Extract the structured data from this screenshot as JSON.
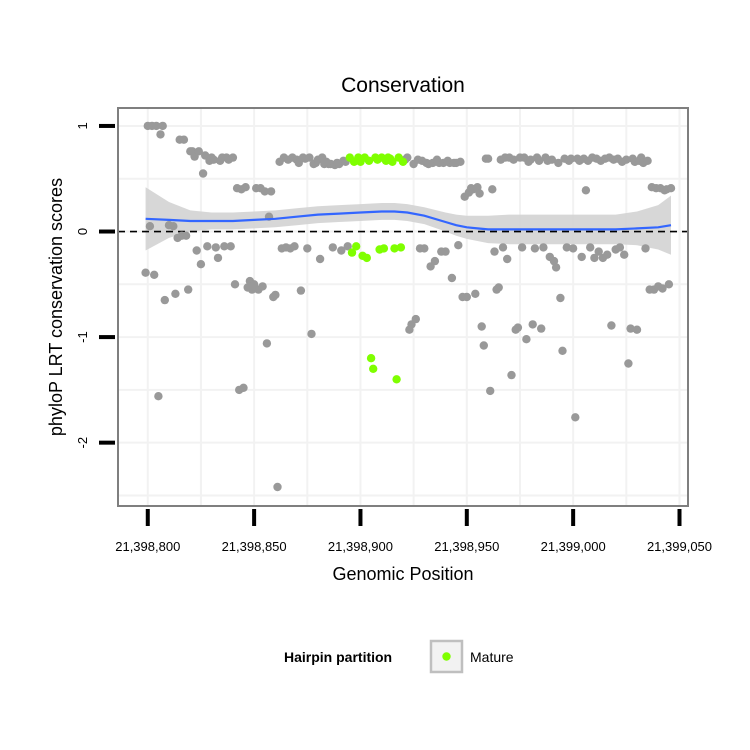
{
  "chart_data": {
    "type": "scatter",
    "title": "Conservation",
    "xlabel": "Genomic Position",
    "ylabel": "phyloP LRT conservation scores",
    "xlim": [
      21398786,
      21399054
    ],
    "ylim": [
      -2.6,
      1.17
    ],
    "x_ticks": [
      21398800,
      21398850,
      21398900,
      21398950,
      21399000,
      21399050
    ],
    "x_tick_labels": [
      "21,398,800",
      "21,398,850",
      "21,398,900",
      "21,398,950",
      "21,399,000",
      "21,399,050"
    ],
    "y_ticks": [
      1,
      0,
      -1,
      -2
    ],
    "y_tick_labels": [
      "1",
      "0",
      "-1",
      "-2"
    ],
    "grid": true,
    "reference_line": {
      "y": 0,
      "style": "dashed"
    },
    "legend": {
      "title": "Hairpin partition",
      "position": "bottom",
      "entries": [
        {
          "label": "Mature",
          "color": "#7fff00"
        }
      ]
    },
    "colors": {
      "other": "#999999",
      "mature": "#7fff00",
      "smooth": "#3366ff",
      "band": "#d3d3d3"
    },
    "series": [
      {
        "name": "",
        "color": "#999999",
        "points": [
          [
            21398799,
            -0.39
          ],
          [
            21398800,
            1.0
          ],
          [
            21398801,
            0.05
          ],
          [
            21398802,
            1.0
          ],
          [
            21398803,
            -0.41
          ],
          [
            21398804,
            1.0
          ],
          [
            21398805,
            -1.56
          ],
          [
            21398806,
            0.92
          ],
          [
            21398807,
            1.0
          ],
          [
            21398808,
            -0.65
          ],
          [
            21398810,
            0.06
          ],
          [
            21398812,
            0.05
          ],
          [
            21398813,
            -0.59
          ],
          [
            21398814,
            -0.06
          ],
          [
            21398815,
            0.87
          ],
          [
            21398816,
            -0.04
          ],
          [
            21398817,
            0.87
          ],
          [
            21398818,
            -0.04
          ],
          [
            21398819,
            -0.55
          ],
          [
            21398820,
            0.76
          ],
          [
            21398821,
            0.76
          ],
          [
            21398822,
            0.71
          ],
          [
            21398823,
            -0.18
          ],
          [
            21398824,
            0.76
          ],
          [
            21398825,
            -0.31
          ],
          [
            21398826,
            0.55
          ],
          [
            21398827,
            0.72
          ],
          [
            21398828,
            -0.14
          ],
          [
            21398829,
            0.67
          ],
          [
            21398830,
            0.7
          ],
          [
            21398831,
            0.68
          ],
          [
            21398832,
            -0.15
          ],
          [
            21398833,
            -0.25
          ],
          [
            21398834,
            0.67
          ],
          [
            21398835,
            0.7
          ],
          [
            21398836,
            -0.14
          ],
          [
            21398837,
            0.7
          ],
          [
            21398838,
            0.68
          ],
          [
            21398839,
            -0.14
          ],
          [
            21398840,
            0.7
          ],
          [
            21398841,
            -0.5
          ],
          [
            21398842,
            0.41
          ],
          [
            21398843,
            -1.5
          ],
          [
            21398844,
            0.4
          ],
          [
            21398845,
            -1.48
          ],
          [
            21398846,
            0.42
          ],
          [
            21398847,
            -0.53
          ],
          [
            21398848,
            -0.47
          ],
          [
            21398849,
            -0.55
          ],
          [
            21398850,
            -0.5
          ],
          [
            21398851,
            0.41
          ],
          [
            21398852,
            -0.55
          ],
          [
            21398853,
            0.41
          ],
          [
            21398854,
            -0.52
          ],
          [
            21398855,
            0.38
          ],
          [
            21398856,
            -1.06
          ],
          [
            21398857,
            0.14
          ],
          [
            21398858,
            0.38
          ],
          [
            21398859,
            -0.62
          ],
          [
            21398860,
            -0.6
          ],
          [
            21398861,
            -2.42
          ],
          [
            21398862,
            0.66
          ],
          [
            21398863,
            -0.16
          ],
          [
            21398864,
            0.7
          ],
          [
            21398865,
            -0.15
          ],
          [
            21398866,
            0.68
          ],
          [
            21398867,
            -0.16
          ],
          [
            21398868,
            0.7
          ],
          [
            21398869,
            -0.14
          ],
          [
            21398870,
            0.68
          ],
          [
            21398871,
            0.65
          ],
          [
            21398872,
            -0.56
          ],
          [
            21398873,
            0.7
          ],
          [
            21398874,
            0.69
          ],
          [
            21398875,
            -0.16
          ],
          [
            21398876,
            0.7
          ],
          [
            21398877,
            -0.97
          ],
          [
            21398878,
            0.64
          ],
          [
            21398879,
            0.65
          ],
          [
            21398880,
            0.68
          ],
          [
            21398881,
            -0.26
          ],
          [
            21398882,
            0.7
          ],
          [
            21398883,
            0.64
          ],
          [
            21398884,
            0.66
          ],
          [
            21398885,
            0.64
          ],
          [
            21398886,
            0.64
          ],
          [
            21398887,
            -0.15
          ],
          [
            21398888,
            0.63
          ],
          [
            21398889,
            0.65
          ],
          [
            21398890,
            0.64
          ],
          [
            21398891,
            -0.18
          ],
          [
            21398892,
            0.67
          ],
          [
            21398893,
            0.66
          ],
          [
            21398894,
            -0.14
          ],
          [
            21398921,
            0.68
          ],
          [
            21398922,
            0.7
          ],
          [
            21398923,
            -0.93
          ],
          [
            21398924,
            -0.88
          ],
          [
            21398925,
            0.64
          ],
          [
            21398926,
            -0.83
          ],
          [
            21398927,
            0.68
          ],
          [
            21398928,
            -0.16
          ],
          [
            21398929,
            0.67
          ],
          [
            21398930,
            -0.16
          ],
          [
            21398931,
            0.65
          ],
          [
            21398932,
            0.64
          ],
          [
            21398933,
            -0.33
          ],
          [
            21398934,
            0.65
          ],
          [
            21398935,
            -0.28
          ],
          [
            21398936,
            0.68
          ],
          [
            21398937,
            0.65
          ],
          [
            21398938,
            -0.19
          ],
          [
            21398939,
            0.65
          ],
          [
            21398940,
            -0.19
          ],
          [
            21398941,
            0.67
          ],
          [
            21398942,
            0.65
          ],
          [
            21398943,
            -0.44
          ],
          [
            21398944,
            0.65
          ],
          [
            21398945,
            0.65
          ],
          [
            21398946,
            -0.13
          ],
          [
            21398947,
            0.66
          ],
          [
            21398948,
            -0.62
          ],
          [
            21398949,
            0.33
          ],
          [
            21398950,
            -0.62
          ],
          [
            21398951,
            0.37
          ],
          [
            21398952,
            0.41
          ],
          [
            21398953,
            0.4
          ],
          [
            21398954,
            -0.59
          ],
          [
            21398955,
            0.42
          ],
          [
            21398956,
            0.36
          ],
          [
            21398957,
            -0.9
          ],
          [
            21398958,
            -1.08
          ],
          [
            21398959,
            0.69
          ],
          [
            21398960,
            0.69
          ],
          [
            21398961,
            -1.51
          ],
          [
            21398962,
            0.4
          ],
          [
            21398963,
            -0.19
          ],
          [
            21398964,
            -0.55
          ],
          [
            21398965,
            -0.53
          ],
          [
            21398966,
            0.68
          ],
          [
            21398967,
            -0.15
          ],
          [
            21398968,
            0.7
          ],
          [
            21398969,
            -0.26
          ],
          [
            21398970,
            0.7
          ],
          [
            21398971,
            -1.36
          ],
          [
            21398972,
            0.68
          ],
          [
            21398973,
            -0.93
          ],
          [
            21398974,
            -0.91
          ],
          [
            21398975,
            0.7
          ],
          [
            21398976,
            -0.15
          ],
          [
            21398977,
            0.7
          ],
          [
            21398978,
            -1.02
          ],
          [
            21398979,
            0.66
          ],
          [
            21398980,
            0.68
          ],
          [
            21398981,
            -0.88
          ],
          [
            21398982,
            -0.16
          ],
          [
            21398983,
            0.7
          ],
          [
            21398984,
            0.67
          ],
          [
            21398985,
            -0.92
          ],
          [
            21398986,
            -0.15
          ],
          [
            21398987,
            0.7
          ],
          [
            21398988,
            0.67
          ],
          [
            21398989,
            -0.24
          ],
          [
            21398990,
            0.68
          ],
          [
            21398991,
            -0.28
          ],
          [
            21398992,
            -0.34
          ],
          [
            21398993,
            0.65
          ],
          [
            21398994,
            -0.63
          ],
          [
            21398995,
            -1.13
          ],
          [
            21398996,
            0.69
          ],
          [
            21398997,
            -0.15
          ],
          [
            21398998,
            0.67
          ],
          [
            21398999,
            0.69
          ],
          [
            21399000,
            -0.16
          ],
          [
            21399001,
            -1.76
          ],
          [
            21399002,
            0.69
          ],
          [
            21399003,
            0.67
          ],
          [
            21399004,
            -0.24
          ],
          [
            21399005,
            0.69
          ],
          [
            21399006,
            0.39
          ],
          [
            21399007,
            0.67
          ],
          [
            21399008,
            -0.15
          ],
          [
            21399009,
            0.7
          ],
          [
            21399010,
            -0.25
          ],
          [
            21399011,
            0.69
          ],
          [
            21399012,
            -0.19
          ],
          [
            21399013,
            0.67
          ],
          [
            21399014,
            -0.25
          ],
          [
            21399015,
            0.69
          ],
          [
            21399016,
            -0.22
          ],
          [
            21399017,
            0.7
          ],
          [
            21399018,
            -0.89
          ],
          [
            21399019,
            0.68
          ],
          [
            21399020,
            -0.17
          ],
          [
            21399021,
            0.69
          ],
          [
            21399022,
            -0.15
          ],
          [
            21399023,
            0.66
          ],
          [
            21399024,
            -0.22
          ],
          [
            21399025,
            0.68
          ],
          [
            21399026,
            -1.25
          ],
          [
            21399027,
            -0.92
          ],
          [
            21399028,
            0.69
          ],
          [
            21399029,
            0.66
          ],
          [
            21399030,
            -0.93
          ],
          [
            21399031,
            0.67
          ],
          [
            21399032,
            0.7
          ],
          [
            21399033,
            0.65
          ],
          [
            21399034,
            -0.16
          ],
          [
            21399035,
            0.67
          ],
          [
            21399036,
            -0.55
          ],
          [
            21399037,
            0.42
          ],
          [
            21399038,
            -0.55
          ],
          [
            21399039,
            0.41
          ],
          [
            21399040,
            -0.52
          ],
          [
            21399041,
            0.41
          ],
          [
            21399042,
            -0.54
          ],
          [
            21399043,
            0.39
          ],
          [
            21399044,
            0.4
          ],
          [
            21399045,
            -0.5
          ],
          [
            21399046,
            0.41
          ]
        ]
      },
      {
        "name": "Mature",
        "color": "#7fff00",
        "points": [
          [
            21398895,
            0.7
          ],
          [
            21398896,
            -0.2
          ],
          [
            21398897,
            0.66
          ],
          [
            21398898,
            -0.14
          ],
          [
            21398899,
            0.7
          ],
          [
            21398900,
            0.66
          ],
          [
            21398901,
            -0.23
          ],
          [
            21398902,
            0.7
          ],
          [
            21398903,
            -0.25
          ],
          [
            21398904,
            0.67
          ],
          [
            21398905,
            -1.2
          ],
          [
            21398906,
            -1.3
          ],
          [
            21398907,
            0.7
          ],
          [
            21398908,
            0.68
          ],
          [
            21398909,
            -0.17
          ],
          [
            21398910,
            0.7
          ],
          [
            21398911,
            -0.16
          ],
          [
            21398912,
            0.67
          ],
          [
            21398913,
            0.7
          ],
          [
            21398914,
            0.69
          ],
          [
            21398915,
            0.66
          ],
          [
            21398916,
            -0.16
          ],
          [
            21398917,
            -1.4
          ],
          [
            21398918,
            0.7
          ],
          [
            21398919,
            -0.15
          ],
          [
            21398920,
            0.66
          ]
        ]
      }
    ],
    "smooth": {
      "x": [
        21398799,
        21398810,
        21398820,
        21398830,
        21398840,
        21398850,
        21398860,
        21398870,
        21398880,
        21398890,
        21398900,
        21398910,
        21398916,
        21398922,
        21398930,
        21398940,
        21398945,
        21398950,
        21398955,
        21398960,
        21398970,
        21398980,
        21398990,
        21399000,
        21399010,
        21399020,
        21399030,
        21399040,
        21399046
      ],
      "y": [
        0.12,
        0.11,
        0.1,
        0.1,
        0.1,
        0.11,
        0.12,
        0.14,
        0.16,
        0.17,
        0.18,
        0.19,
        0.19,
        0.18,
        0.15,
        0.09,
        0.06,
        0.04,
        0.03,
        0.02,
        0.02,
        0.02,
        0.02,
        0.02,
        0.02,
        0.02,
        0.03,
        0.04,
        0.06
      ],
      "lower": [
        -0.18,
        -0.06,
        0.0,
        0.02,
        0.02,
        0.03,
        0.04,
        0.06,
        0.08,
        0.09,
        0.1,
        0.11,
        0.11,
        0.1,
        0.07,
        0.0,
        -0.04,
        -0.07,
        -0.09,
        -0.11,
        -0.12,
        -0.12,
        -0.12,
        -0.12,
        -0.12,
        -0.12,
        -0.13,
        -0.17,
        -0.22
      ],
      "upper": [
        0.42,
        0.28,
        0.2,
        0.18,
        0.18,
        0.19,
        0.2,
        0.22,
        0.24,
        0.25,
        0.26,
        0.27,
        0.27,
        0.26,
        0.23,
        0.18,
        0.16,
        0.15,
        0.15,
        0.15,
        0.16,
        0.16,
        0.16,
        0.16,
        0.16,
        0.16,
        0.19,
        0.25,
        0.34
      ]
    }
  }
}
